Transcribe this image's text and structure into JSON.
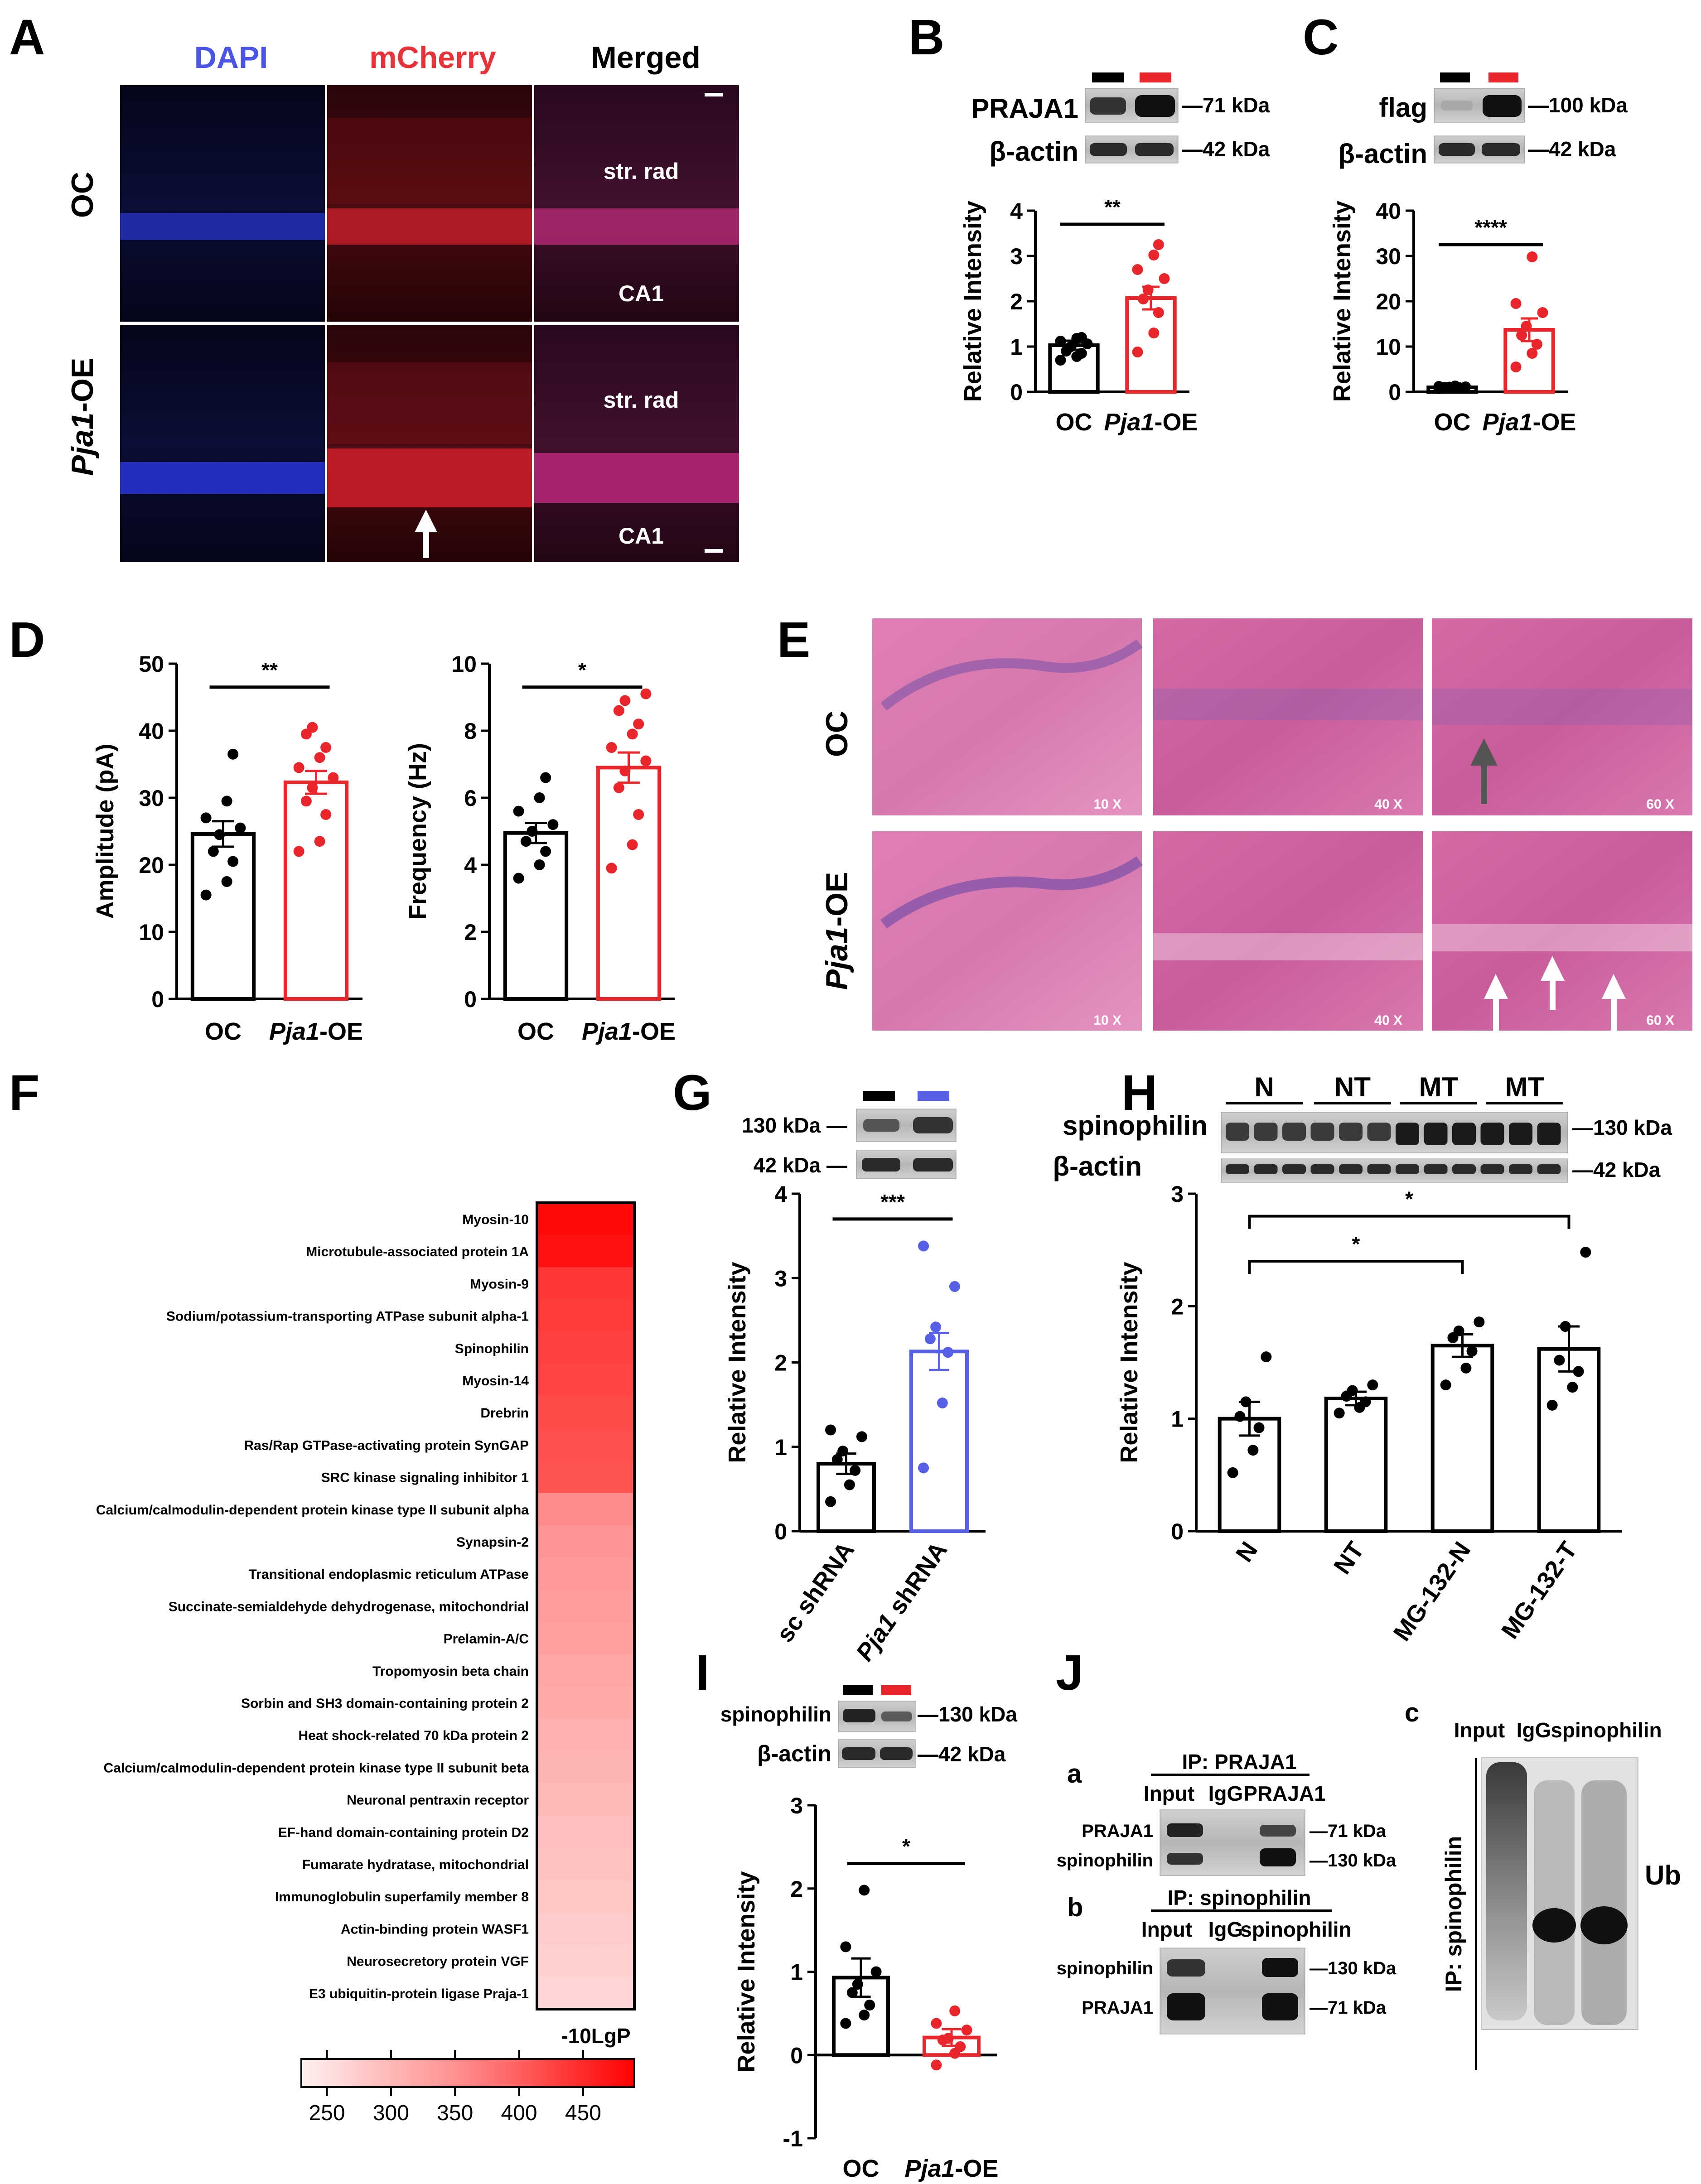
{
  "panelA": {
    "letter": "A",
    "col_headers": [
      "DAPI",
      "mCherry",
      "Merged"
    ],
    "col_colors": [
      "#4a55e8",
      "#e8323a",
      "#000000"
    ],
    "row_labels": [
      "OC",
      "Pja1-OE"
    ],
    "row_label_oe_italic": "Pja1",
    "row_label_oe_rest": "-OE",
    "region_labels": {
      "top": "str. rad",
      "bottom": "CA1"
    }
  },
  "panelB": {
    "letter": "B",
    "blot_labels": [
      "PRAJA1",
      "β-actin"
    ],
    "kda": [
      "—71 kDa",
      "—42 kDa"
    ],
    "sig": "**",
    "chart_data": {
      "type": "bar",
      "categories": [
        "OC",
        "Pja1-OE"
      ],
      "values": [
        1.03,
        2.07
      ],
      "errors": [
        0.1,
        0.25
      ],
      "points": [
        [
          0.7,
          0.78,
          0.85,
          0.9,
          1.0,
          1.06,
          1.12,
          1.18,
          1.2
        ],
        [
          0.88,
          1.3,
          1.75,
          2.05,
          2.25,
          2.5,
          2.7,
          3.02,
          3.25
        ]
      ],
      "ylabel": "Relative Intensity",
      "ylim": [
        0,
        4
      ],
      "yticks": [
        "0",
        "1",
        "2",
        "3",
        "4"
      ],
      "colors": [
        "#000000",
        "#e8262b"
      ]
    }
  },
  "panelC": {
    "letter": "C",
    "blot_labels": [
      "flag",
      "β-actin"
    ],
    "kda": [
      "—100 kDa",
      "—42 kDa"
    ],
    "sig": "****",
    "chart_data": {
      "type": "bar",
      "categories": [
        "OC",
        "Pja1-OE"
      ],
      "values": [
        1.0,
        13.7
      ],
      "errors": [
        0.15,
        2.5
      ],
      "points": [
        [
          0.7,
          0.8,
          0.9,
          1.0,
          1.05,
          1.1,
          1.2,
          1.3
        ],
        [
          5.5,
          8.5,
          10.5,
          12.5,
          14.5,
          17.5,
          19.5,
          29.8
        ]
      ],
      "ylabel": "Relative Intensity",
      "ylim": [
        0,
        40
      ],
      "yticks": [
        "0",
        "10",
        "20",
        "30",
        "40"
      ],
      "colors": [
        "#000000",
        "#e8262b"
      ]
    }
  },
  "panelD": {
    "letter": "D",
    "amp": {
      "sig": "**",
      "chart_data": {
        "type": "bar",
        "categories": [
          "OC",
          "Pja1-OE"
        ],
        "values": [
          24.6,
          32.3
        ],
        "errors": [
          1.9,
          1.7
        ],
        "points": [
          [
            15.5,
            17.5,
            20.5,
            22,
            24.5,
            25.5,
            27,
            29.5,
            36.5
          ],
          [
            22,
            23.5,
            27.5,
            29.5,
            31.5,
            33,
            34.5,
            36,
            37.5,
            39.5,
            40.5
          ]
        ],
        "ylabel": "Amplitude (pA)",
        "ylim": [
          0,
          50
        ],
        "yticks": [
          "0",
          "10",
          "20",
          "30",
          "40",
          "50"
        ],
        "colors": [
          "#000000",
          "#e8262b"
        ]
      }
    },
    "freq": {
      "sig": "*",
      "chart_data": {
        "type": "bar",
        "categories": [
          "OC",
          "Pja1-OE"
        ],
        "values": [
          4.95,
          6.9
        ],
        "errors": [
          0.3,
          0.45
        ],
        "points": [
          [
            3.6,
            4.0,
            4.4,
            4.7,
            5.0,
            5.2,
            5.6,
            6.0,
            6.6
          ],
          [
            3.9,
            4.6,
            5.5,
            6.3,
            6.8,
            7.1,
            7.5,
            7.9,
            8.2,
            8.6,
            8.9,
            9.1
          ]
        ],
        "ylabel": "Frequency (Hz)",
        "ylim": [
          0,
          10
        ],
        "yticks": [
          "0",
          "2",
          "4",
          "6",
          "8",
          "10"
        ],
        "colors": [
          "#000000",
          "#e8262b"
        ]
      }
    }
  },
  "panelE": {
    "letter": "E",
    "row_labels": [
      "OC",
      "Pja1-OE"
    ],
    "mags": [
      "10 X",
      "40 X",
      "60 X"
    ]
  },
  "panelF": {
    "letter": "F",
    "proteins": [
      "Myosin-10",
      "Microtubule-associated protein 1A",
      "Myosin-9",
      "Sodium/potassium-transporting ATPase subunit alpha-1",
      "Spinophilin",
      "Myosin-14",
      "Drebrin",
      "Ras/Rap GTPase-activating protein SynGAP",
      "SRC kinase signaling inhibitor 1",
      "Calcium/calmodulin-dependent protein kinase type II subunit alpha",
      "Synapsin-2",
      "Transitional endoplasmic reticulum ATPase",
      "Succinate-semialdehyde dehydrogenase, mitochondrial",
      "Prelamin-A/C",
      "Tropomyosin beta chain",
      "Sorbin and SH3 domain-containing protein 2",
      "Heat shock-related 70 kDa protein 2",
      "Calcium/calmodulin-dependent protein kinase type II subunit beta",
      "Neuronal pentraxin receptor",
      "EF-hand domain-containing protein D2",
      "Fumarate hydratase, mitochondrial",
      "Immunoglobulin superfamily member 8",
      "Actin-binding protein WASF1",
      "Neurosecretory protein VGF",
      "E3 ubiquitin-protein ligase Praja-1"
    ],
    "chart_data": {
      "type": "heatmap",
      "values": [
        480,
        470,
        430,
        425,
        420,
        415,
        410,
        405,
        400,
        340,
        330,
        325,
        320,
        318,
        310,
        305,
        300,
        295,
        290,
        285,
        280,
        275,
        270,
        265,
        260
      ],
      "colorbar_label": "-10LgP",
      "colorbar_ticks": [
        "250",
        "300",
        "350",
        "400",
        "450"
      ],
      "range": [
        230,
        490
      ]
    }
  },
  "panelG": {
    "letter": "G",
    "kda": [
      "130 kDa —",
      "42 kDa —"
    ],
    "sig": "***",
    "chart_data": {
      "type": "bar",
      "categories": [
        "sc shRNA",
        "Pja1 shRNA"
      ],
      "values": [
        0.8,
        2.13
      ],
      "errors": [
        0.12,
        0.22
      ],
      "points": [
        [
          0.35,
          0.55,
          0.72,
          0.85,
          0.95,
          1.12,
          1.2
        ],
        [
          0.75,
          1.52,
          2.12,
          2.28,
          2.42,
          2.9,
          3.38
        ]
      ],
      "ylabel": "Relative Intensity",
      "ylim": [
        0,
        4
      ],
      "yticks": [
        "0",
        "1",
        "2",
        "3",
        "4"
      ],
      "colors": [
        "#000000",
        "#5860e8"
      ]
    }
  },
  "panelH": {
    "letter": "H",
    "group_labels": [
      "N",
      "NT",
      "MT",
      "MT"
    ],
    "blot_labels": [
      "spinophilin",
      "β-actin"
    ],
    "kda": [
      "—130 kDa",
      "—42 kDa"
    ],
    "sig": [
      "*",
      "*"
    ],
    "chart_data": {
      "type": "bar",
      "categories": [
        "N",
        "NT",
        "MG-132-N",
        "MG-132-T"
      ],
      "values": [
        1.0,
        1.18,
        1.65,
        1.62
      ],
      "errors": [
        0.15,
        0.06,
        0.1,
        0.2
      ],
      "points": [
        [
          0.52,
          0.72,
          0.92,
          1.02,
          1.15,
          1.55
        ],
        [
          1.05,
          1.1,
          1.15,
          1.2,
          1.25,
          1.3
        ],
        [
          1.3,
          1.45,
          1.6,
          1.72,
          1.78,
          1.86
        ],
        [
          1.12,
          1.28,
          1.42,
          1.52,
          1.82,
          2.48
        ]
      ],
      "ylabel": "Relative Intensity",
      "ylim": [
        0,
        3
      ],
      "yticks": [
        "0",
        "1",
        "2",
        "3"
      ],
      "colors": [
        "#000000",
        "#000000",
        "#000000",
        "#000000"
      ]
    }
  },
  "panelI": {
    "letter": "I",
    "blot_labels": [
      "spinophilin",
      "β-actin"
    ],
    "kda": [
      "—130 kDa",
      "—42 kDa"
    ],
    "sig": "*",
    "chart_data": {
      "type": "bar",
      "categories": [
        "OC",
        "Pja1-OE"
      ],
      "values": [
        0.93,
        0.21
      ],
      "errors": [
        0.23,
        0.1
      ],
      "points": [
        [
          0.38,
          0.48,
          0.6,
          0.75,
          0.85,
          1.0,
          1.3,
          1.98
        ],
        [
          -0.12,
          0.02,
          0.1,
          0.18,
          0.2,
          0.3,
          0.38,
          0.53
        ]
      ],
      "ylabel": "Relative Intensity",
      "ylim": [
        -1,
        3
      ],
      "yticks": [
        "-1",
        "0",
        "1",
        "2",
        "3"
      ],
      "colors": [
        "#000000",
        "#e8262b"
      ]
    }
  },
  "panelJ": {
    "letter": "J",
    "a": {
      "sub": "a",
      "title": "IP: PRAJA1",
      "lanes": [
        "Input",
        "IgG",
        "PRAJA1"
      ],
      "rows": [
        "PRAJA1",
        "spinophilin"
      ],
      "kda": [
        "—71 kDa",
        "—130 kDa"
      ]
    },
    "b": {
      "sub": "b",
      "title": "IP: spinophilin",
      "lanes": [
        "Input",
        "IgG",
        "spinophilin"
      ],
      "rows": [
        "spinophilin",
        "PRAJA1"
      ],
      "kda": [
        "—130 kDa",
        "—71 kDa"
      ]
    },
    "c": {
      "sub": "c",
      "lanes": [
        "Input",
        "IgG",
        "spinophilin"
      ],
      "side": "IP: spinophilin",
      "ub": "Ub"
    }
  }
}
